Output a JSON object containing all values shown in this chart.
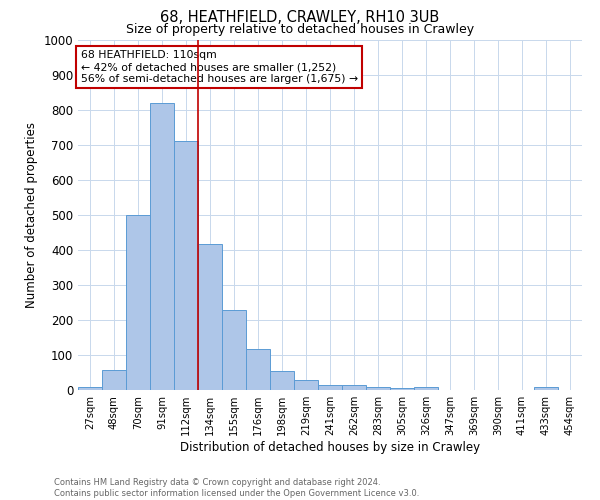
{
  "title_line1": "68, HEATHFIELD, CRAWLEY, RH10 3UB",
  "title_line2": "Size of property relative to detached houses in Crawley",
  "xlabel": "Distribution of detached houses by size in Crawley",
  "ylabel": "Number of detached properties",
  "footer_line1": "Contains HM Land Registry data © Crown copyright and database right 2024.",
  "footer_line2": "Contains public sector information licensed under the Open Government Licence v3.0.",
  "bar_labels": [
    "27sqm",
    "48sqm",
    "70sqm",
    "91sqm",
    "112sqm",
    "134sqm",
    "155sqm",
    "176sqm",
    "198sqm",
    "219sqm",
    "241sqm",
    "262sqm",
    "283sqm",
    "305sqm",
    "326sqm",
    "347sqm",
    "369sqm",
    "390sqm",
    "411sqm",
    "433sqm",
    "454sqm"
  ],
  "bar_values": [
    8,
    57,
    500,
    820,
    710,
    418,
    230,
    116,
    55,
    30,
    15,
    13,
    10,
    5,
    8,
    0,
    0,
    0,
    0,
    10,
    0
  ],
  "bar_color": "#aec6e8",
  "bar_edge_color": "#5b9bd5",
  "annotation_text": "68 HEATHFIELD: 110sqm\n← 42% of detached houses are smaller (1,252)\n56% of semi-detached houses are larger (1,675) →",
  "vline_x": 4.5,
  "vline_color": "#c00000",
  "annotation_box_edge": "#c00000",
  "ylim": [
    0,
    1000
  ],
  "yticks": [
    0,
    100,
    200,
    300,
    400,
    500,
    600,
    700,
    800,
    900,
    1000
  ],
  "background_color": "#ffffff",
  "grid_color": "#c8d8ec"
}
